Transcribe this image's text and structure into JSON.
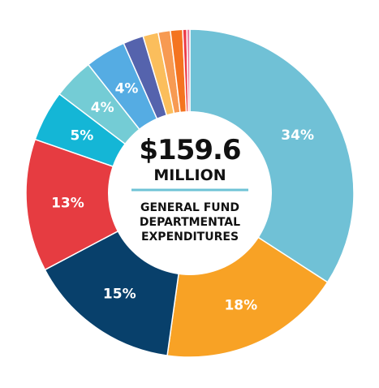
{
  "chart_data": {
    "type": "pie",
    "style": "donut",
    "center": {
      "total": "$159.6",
      "unit": "MILLION",
      "caption": [
        "GENERAL FUND",
        "DEPARTMENTAL",
        "EXPENDITURES"
      ],
      "divider_color": "#6fc3d6"
    },
    "slices": [
      {
        "value": 34,
        "label": "34%",
        "color": "#70c1d6"
      },
      {
        "value": 18,
        "label": "18%",
        "color": "#f8a225"
      },
      {
        "value": 15,
        "label": "15%",
        "color": "#08406b"
      },
      {
        "value": 13,
        "label": "13%",
        "color": "#e63c41"
      },
      {
        "value": 5,
        "label": "5%",
        "color": "#14b6d6"
      },
      {
        "value": 4,
        "label": "4%",
        "color": "#74ccd5"
      },
      {
        "value": 4,
        "label": "4%",
        "color": "#55ace3"
      },
      {
        "value": 2,
        "label": "",
        "color": "#5563ad"
      },
      {
        "value": 1.5,
        "label": "",
        "color": "#fbbe5c"
      },
      {
        "value": 1.2,
        "label": "",
        "color": "#f79a52"
      },
      {
        "value": 1.2,
        "label": "",
        "color": "#f47420"
      },
      {
        "value": 0.4,
        "label": "",
        "color": "#ed3a47"
      },
      {
        "value": 0.3,
        "label": "",
        "color": "#e77ca0"
      }
    ]
  }
}
